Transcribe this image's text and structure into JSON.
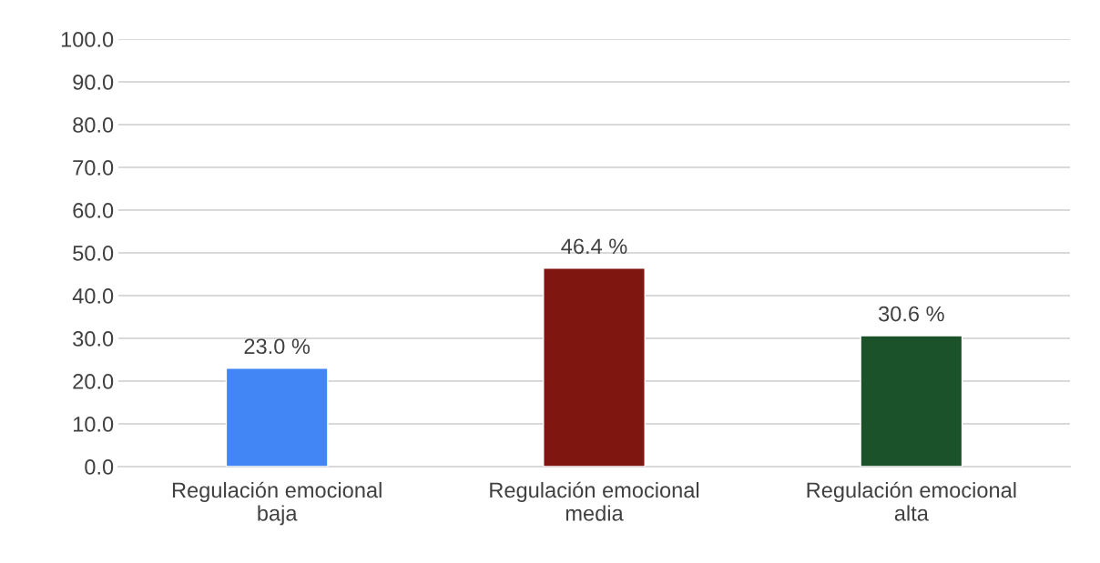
{
  "chart_data": {
    "type": "bar",
    "categories": [
      "Regulación emocional baja",
      "Regulación emocional media",
      "Regulación emocional alta"
    ],
    "values": [
      23.0,
      46.4,
      30.6
    ],
    "colors": [
      "#4285f4",
      "#7f1710",
      "#1b5229"
    ],
    "value_labels": [
      "23.0 %",
      "46.4 %",
      "30.6 %"
    ],
    "ylim": [
      0,
      100
    ],
    "yticks": [
      {
        "value": 0,
        "label": "0.0"
      },
      {
        "value": 10,
        "label": "10.0"
      },
      {
        "value": 20,
        "label": "20.0"
      },
      {
        "value": 30,
        "label": "30.0"
      },
      {
        "value": 40,
        "label": "40.0"
      },
      {
        "value": 50,
        "label": "50.0"
      },
      {
        "value": 60,
        "label": "60.0"
      },
      {
        "value": 70,
        "label": "70.0"
      },
      {
        "value": 80,
        "label": "80.0"
      },
      {
        "value": 90,
        "label": "90.0"
      },
      {
        "value": 100,
        "label": "100.0"
      }
    ],
    "grid": "y",
    "legend": false
  }
}
